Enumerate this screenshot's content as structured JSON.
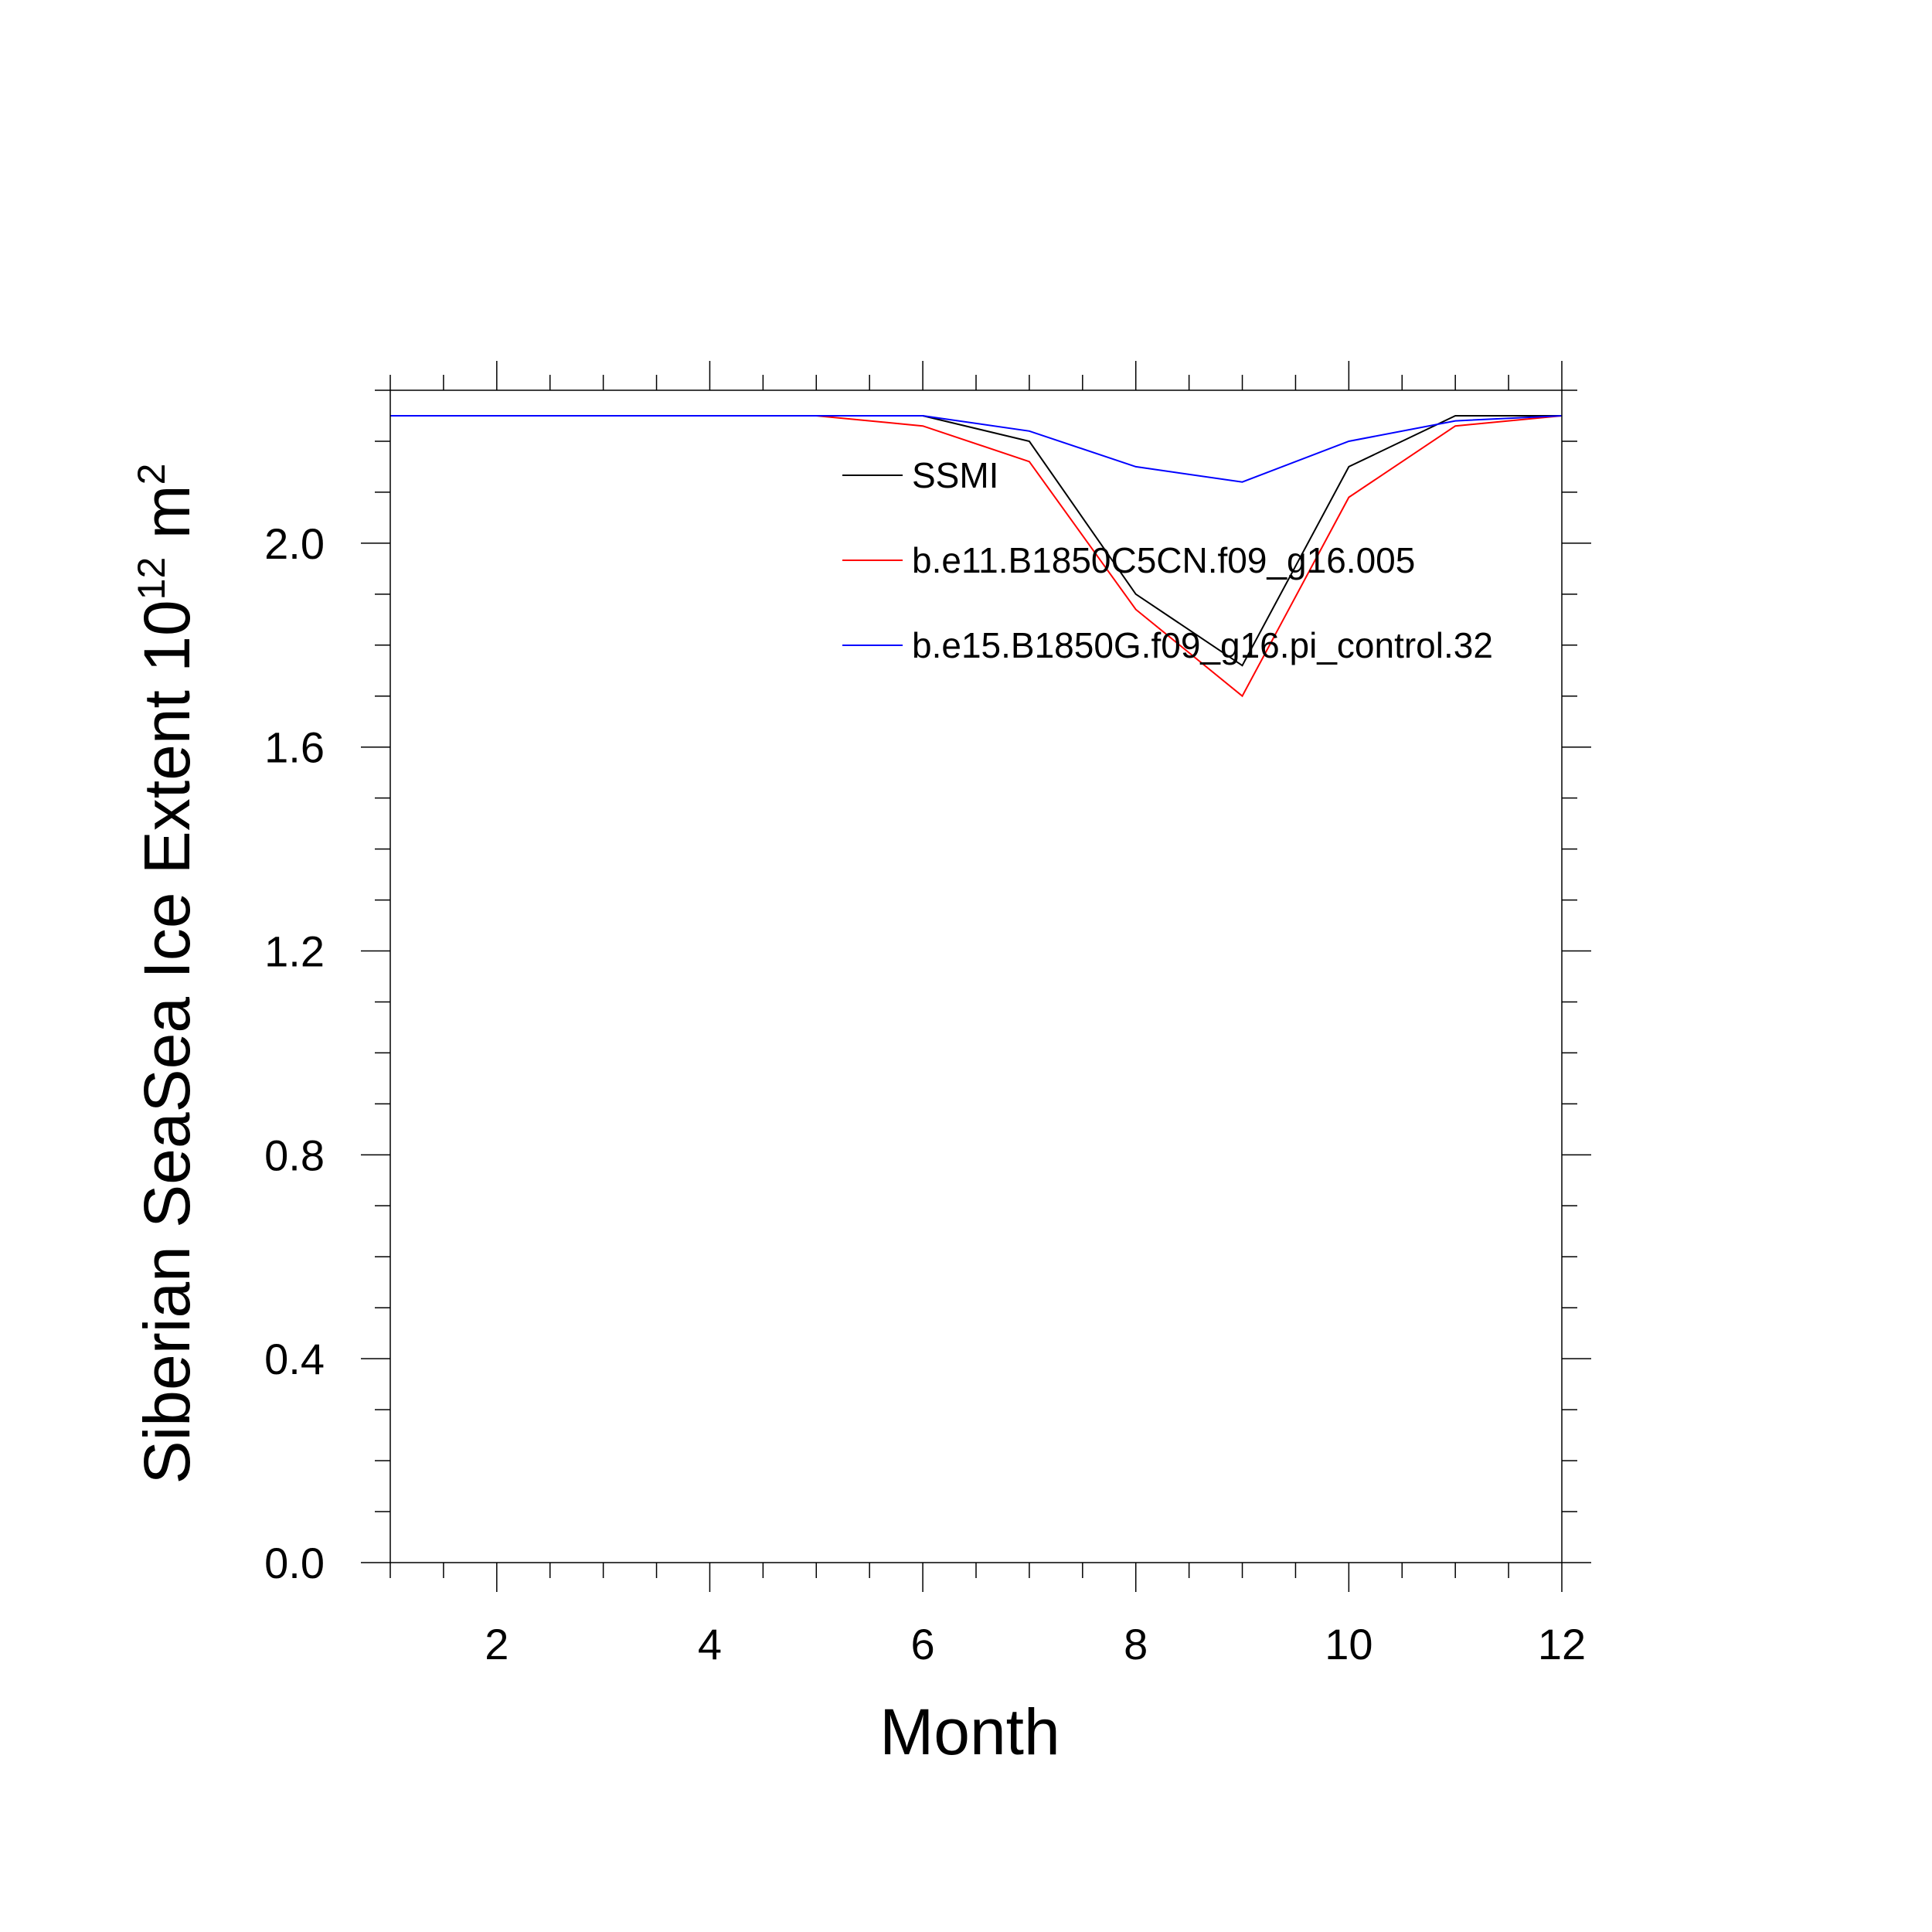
{
  "chart_data": {
    "type": "line",
    "title": "",
    "xlabel": "Month",
    "ylabel": {
      "prefix": "Siberian SeaSea Ice Extent 10",
      "exponent": "12",
      "unit": " m",
      "unit_exponent": "2"
    },
    "xlim": [
      1,
      12
    ],
    "ylim": [
      0,
      2.3
    ],
    "x_ticks": [
      2,
      4,
      6,
      8,
      10,
      12
    ],
    "x_tick_labels": [
      "2",
      "4",
      "6",
      "8",
      "10",
      "12"
    ],
    "y_ticks": [
      0,
      0.4,
      0.8,
      1.2,
      1.6,
      2.0
    ],
    "y_tick_labels": [
      "0.0",
      "0.4",
      "0.8",
      "1.2",
      "1.6",
      "2.0"
    ],
    "grid": false,
    "legend_position": "top-right-inside",
    "x": [
      1,
      2,
      3,
      4,
      5,
      6,
      7,
      8,
      9,
      10,
      11,
      12
    ],
    "series": [
      {
        "name": "SSMI",
        "color": "#000000",
        "values": [
          2.25,
          2.25,
          2.25,
          2.25,
          2.25,
          2.25,
          2.2,
          1.9,
          1.76,
          2.15,
          2.25,
          2.25
        ]
      },
      {
        "name": "b.e11.B1850C5CN.f09_g16.005",
        "color": "#ff0000",
        "values": [
          2.25,
          2.25,
          2.25,
          2.25,
          2.25,
          2.23,
          2.16,
          1.87,
          1.7,
          2.09,
          2.23,
          2.25
        ]
      },
      {
        "name": "b.e15.B1850G.f09_g16.pi_control.32",
        "color": "#0000ff",
        "values": [
          2.25,
          2.25,
          2.25,
          2.25,
          2.25,
          2.25,
          2.22,
          2.15,
          2.12,
          2.2,
          2.24,
          2.25
        ]
      }
    ]
  }
}
